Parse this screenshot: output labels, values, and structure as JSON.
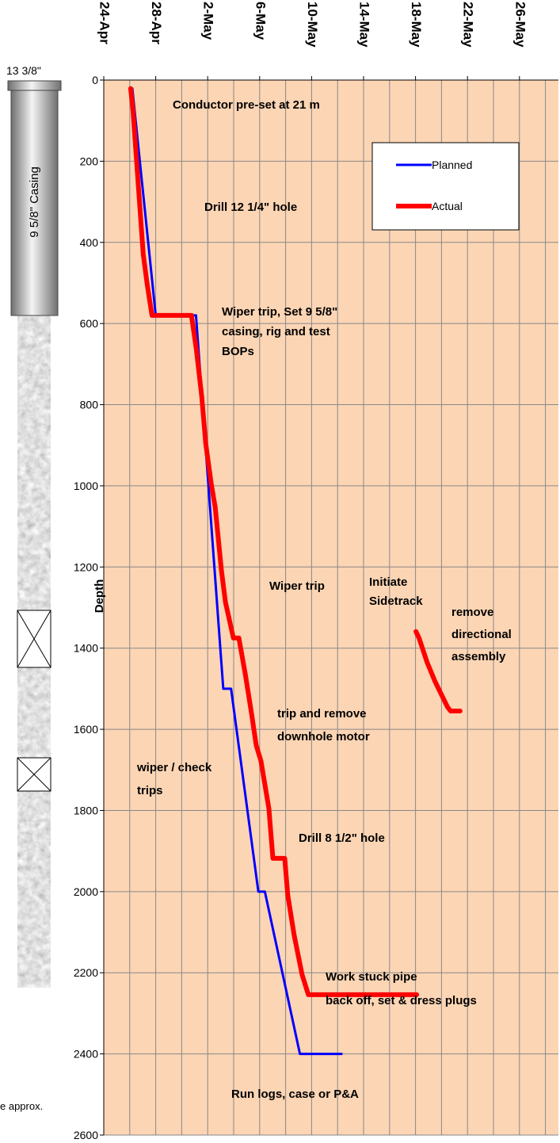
{
  "chart_data": {
    "type": "line",
    "y_label": "Depth",
    "xlim": [
      0,
      35
    ],
    "xticks": [
      {
        "value": 0,
        "label": "24-Apr"
      },
      {
        "value": 4,
        "label": "28-Apr"
      },
      {
        "value": 8,
        "label": "2-May"
      },
      {
        "value": 12,
        "label": "6-May"
      },
      {
        "value": 16,
        "label": "10-May"
      },
      {
        "value": 20,
        "label": "14-May"
      },
      {
        "value": 24,
        "label": "18-May"
      },
      {
        "value": 28,
        "label": "22-May"
      },
      {
        "value": 32,
        "label": "26-May"
      }
    ],
    "x_minor_ticks": [
      2,
      6,
      10,
      14,
      18,
      22,
      26,
      30,
      34
    ],
    "ylim": [
      0,
      2600
    ],
    "y_inverted": true,
    "yticks": [
      0,
      200,
      400,
      600,
      800,
      1000,
      1200,
      1400,
      1600,
      1800,
      2000,
      2200,
      2400,
      2600
    ],
    "grid": true,
    "legend": "upper-right",
    "background": "#fcd5b4",
    "series": [
      {
        "name": "Planned",
        "color": "#0000ff",
        "x": [
          2.2,
          4.0,
          7.1,
          9.2,
          9.8,
          11.9,
          12.4,
          15.1,
          18.3
        ],
        "values": [
          21,
          580,
          580,
          1500,
          1500,
          2000,
          2000,
          2400,
          2400
        ]
      },
      {
        "name": "Actual",
        "color": "#ff0000",
        "x": [
          2.07,
          2.25,
          3.04,
          3.35,
          3.71,
          6.75,
          7.12,
          7.54,
          7.85,
          8.27,
          8.58,
          9.06,
          9.37,
          9.98,
          10.4,
          10.89,
          11.37,
          11.74,
          12.1,
          12.71,
          13.02,
          13.93,
          14.17,
          14.66,
          15.27,
          15.75,
          24.09,
          null,
          24.03,
          24.27,
          24.88,
          25.5,
          26.46,
          26.7,
          27.43
        ],
        "values": [
          21,
          75,
          430,
          505,
          580,
          580,
          662,
          779,
          896,
          994,
          1053,
          1209,
          1287,
          1375,
          1375,
          1463,
          1560,
          1640,
          1678,
          1795,
          1918,
          1918,
          2010,
          2108,
          2205,
          2254,
          2254,
          null,
          1359,
          1375,
          1434,
          1482,
          1545,
          1555,
          1555
        ]
      }
    ],
    "annotations": [
      [
        "Conductor pre-set at 21 m"
      ],
      [
        "Drill 12 1/4\" hole"
      ],
      [
        "Wiper trip, Set 9 5/8\"",
        "casing, rig and test",
        "BOPs"
      ],
      [
        "Wiper trip"
      ],
      [
        "Initiate",
        "Sidetrack"
      ],
      [
        "remove",
        "directional",
        "assembly"
      ],
      [
        "trip and remove",
        "downhole motor"
      ],
      [
        "wiper / check",
        "trips"
      ],
      [
        "Drill 8 1/2\" hole"
      ],
      [
        "Work stuck pipe",
        "back off, set & dress plugs"
      ],
      [
        "Run logs, case or P&A"
      ]
    ]
  },
  "schematic": {
    "top_size": "13 3/8\"",
    "casing_label": "9 5/8\" Casing",
    "footnote": "e approx."
  }
}
